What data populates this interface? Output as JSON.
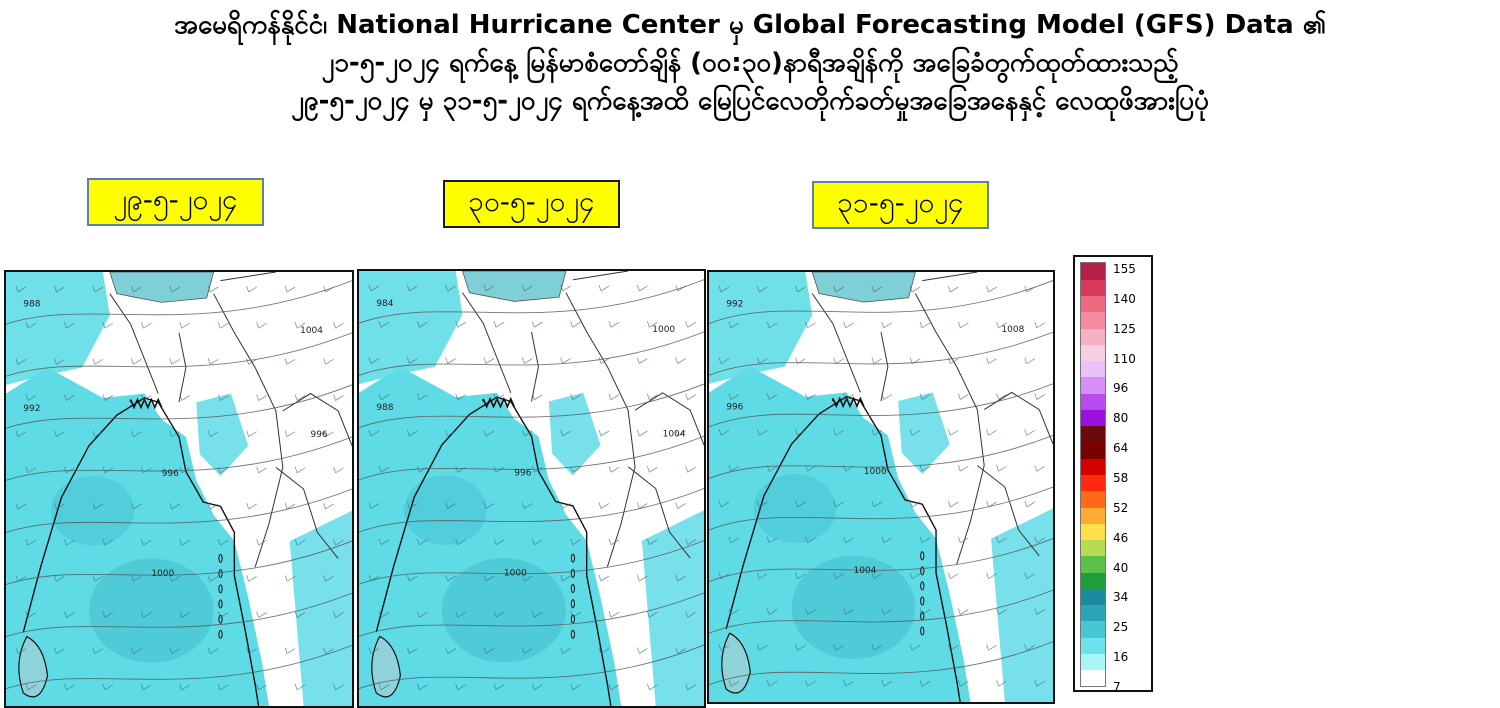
{
  "title_lines": [
    "အမေရိကန်နိုင်ငံ၊ National Hurricane Center မှ Global Forecasting Model (GFS) Data ၏",
    "၂၁-၅-၂၀၂၄ ရက်နေ့ မြန်မာစံတော်ချိန် (၀၀:၃၀)နာရီအချိန်ကို အခြေခံတွက်ထုတ်ထားသည့်",
    "၂၉-၅-၂၀၂၄ မှ ၃၁-၅-၂၀၂၄ ရက်နေ့အထိ မြေပြင်လေတိုက်ခတ်မှုအခြေအနေနှင့် လေထုဖိအားပြပုံ"
  ],
  "maps": [
    {
      "date": "၂၉-၅-၂၀၂၄",
      "isobar_labels": [
        "988",
        "992",
        "996",
        "1000",
        "1004",
        "996"
      ]
    },
    {
      "date": "၃၀-၅-၂၀၂၄",
      "isobar_labels": [
        "984",
        "988",
        "996",
        "1000",
        "1000",
        "1004"
      ]
    },
    {
      "date": "၃၁-၅-၂၀၂၄",
      "isobar_labels": [
        "992",
        "996",
        "1000",
        "1004",
        "1008"
      ]
    }
  ],
  "legend": {
    "ticks": [
      "155",
      "140",
      "125",
      "110",
      "96",
      "80",
      "64",
      "58",
      "52",
      "46",
      "40",
      "34",
      "25",
      "16",
      "7"
    ],
    "colors": [
      "#ffffff",
      "#a8f4f6",
      "#6ee2ea",
      "#45c7d4",
      "#2aa5b8",
      "#1a8aa0",
      "#1f9d3a",
      "#5cc14a",
      "#b6dc52",
      "#ffe04a",
      "#ffaa33",
      "#ff6a1a",
      "#ff2a10",
      "#d40000",
      "#7a0000",
      "#6a0a0a",
      "#9a10e0",
      "#b84af0",
      "#d68ef8",
      "#ecc0fa",
      "#f6cfe4",
      "#f7b0c6",
      "#f48aa0",
      "#ee6a80",
      "#d83a5c",
      "#b41e48"
    ],
    "cyan_shade": "#5fdbe6",
    "deep_cyan": "#45c0cf",
    "coast_color": "#111111"
  }
}
